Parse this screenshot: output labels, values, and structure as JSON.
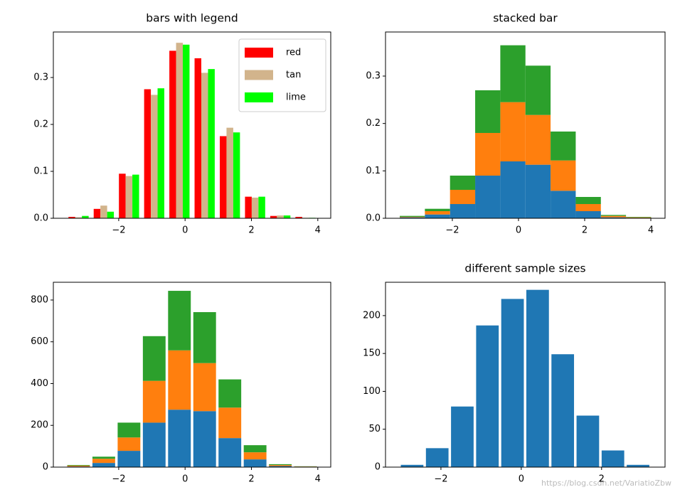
{
  "chart_data": [
    {
      "type": "histogram",
      "histtype": "bar",
      "title": "bars with legend",
      "legend": "upper right",
      "bins": [
        -3.59,
        -2.83,
        -2.07,
        -1.31,
        -0.55,
        0.21,
        0.97,
        1.73,
        2.49,
        3.25,
        4.01
      ],
      "series": [
        {
          "name": "red",
          "color": "#ff0000",
          "values": [
            0.003,
            0.02,
            0.095,
            0.275,
            0.357,
            0.341,
            0.175,
            0.046,
            0.005,
            0.003
          ]
        },
        {
          "name": "tan",
          "color": "#d2b48c",
          "values": [
            0.002,
            0.027,
            0.09,
            0.263,
            0.374,
            0.31,
            0.193,
            0.044,
            0.006,
            0.001
          ]
        },
        {
          "name": "lime",
          "color": "#00ff00",
          "values": [
            0.005,
            0.014,
            0.093,
            0.277,
            0.37,
            0.318,
            0.183,
            0.046,
            0.006,
            0.001
          ]
        }
      ],
      "xlim": [
        -3.97,
        4.39
      ],
      "xticks": [
        {
          "value": -2,
          "label": "−2"
        },
        0,
        2,
        4
      ],
      "ylim": [
        0,
        0.397
      ],
      "yticks": [
        {
          "value": 0,
          "label": "0.0"
        },
        0.1,
        0.2,
        0.3
      ]
    },
    {
      "type": "histogram",
      "histtype": "stepfilled",
      "title": "stacked bar",
      "bins": [
        -3.59,
        -2.83,
        -2.07,
        -1.31,
        -0.55,
        0.21,
        0.97,
        1.73,
        2.49,
        3.25,
        4.01
      ],
      "series": [
        {
          "color": "#1f77b4",
          "values": [
            0.002,
            0.008,
            0.03,
            0.09,
            0.12,
            0.113,
            0.058,
            0.015,
            0.002,
            0.001
          ]
        },
        {
          "color": "#ff7f0e",
          "values": [
            0.001,
            0.007,
            0.03,
            0.09,
            0.125,
            0.105,
            0.064,
            0.015,
            0.003,
            0.001
          ]
        },
        {
          "color": "#2ca02c",
          "values": [
            0.002,
            0.005,
            0.03,
            0.09,
            0.12,
            0.104,
            0.061,
            0.015,
            0.002,
            0.001
          ]
        }
      ],
      "xlim": [
        -4.02,
        4.43
      ],
      "xticks": [
        {
          "value": -2,
          "label": "−2"
        },
        0,
        2,
        4
      ],
      "ylim": [
        0,
        0.393
      ],
      "yticks": [
        {
          "value": 0,
          "label": "0.0"
        },
        0.1,
        0.2,
        0.3
      ]
    },
    {
      "type": "histogram",
      "histtype": "barstacked",
      "bins": [
        -3.59,
        -2.83,
        -2.07,
        -1.31,
        -0.55,
        0.21,
        0.97,
        1.73,
        2.49,
        3.25,
        4.01
      ],
      "series": [
        {
          "color": "#1f77b4",
          "values": [
            3,
            20,
            78,
            213,
            275,
            268,
            139,
            37,
            5,
            2
          ]
        },
        {
          "color": "#ff7f0e",
          "values": [
            4,
            20,
            64,
            200,
            284,
            230,
            146,
            34,
            5,
            1
          ]
        },
        {
          "color": "#2ca02c",
          "values": [
            3,
            10,
            71,
            214,
            285,
            244,
            135,
            34,
            4,
            1
          ]
        }
      ],
      "xlim": [
        -3.97,
        4.39
      ],
      "xticks": [
        {
          "value": -2,
          "label": "−2"
        },
        0,
        2,
        4
      ],
      "ylim": [
        0,
        885
      ],
      "yticks": [
        0,
        200,
        400,
        600,
        800
      ]
    },
    {
      "type": "histogram",
      "histtype": "barstacked",
      "title": "different sample sizes",
      "bins": [
        -3.03,
        -2.405,
        -1.78,
        -1.155,
        -0.53,
        0.095,
        0.72,
        1.345,
        1.97,
        2.595,
        3.22
      ],
      "series": [
        {
          "color": "#1f77b4",
          "values": [
            3,
            25,
            80,
            187,
            222,
            234,
            149,
            68,
            22,
            3
          ]
        }
      ],
      "xlim": [
        -3.38,
        3.58
      ],
      "xticks": [
        {
          "value": -2,
          "label": "−2"
        },
        0,
        2
      ],
      "ylim": [
        0,
        244
      ],
      "yticks": [
        0,
        50,
        100,
        150,
        200
      ]
    }
  ],
  "watermark": "https://blog.csdn.net/VariatioZbw"
}
